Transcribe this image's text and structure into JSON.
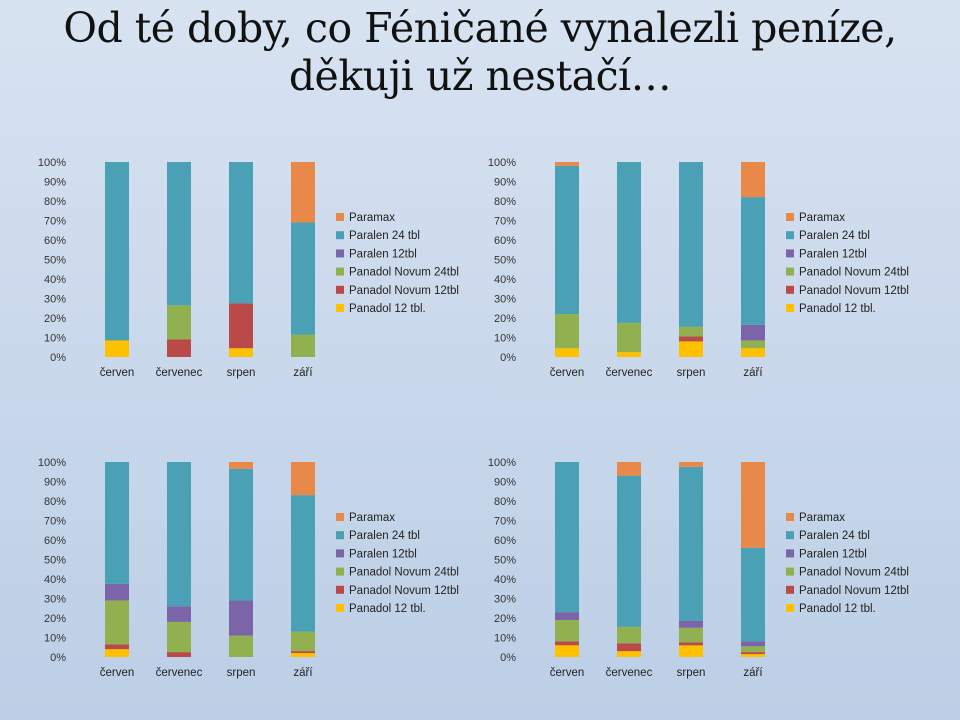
{
  "title": {
    "line1": "Od té doby, co Féničané vynalezli peníze,",
    "line2": "děkuji už nestačí…"
  },
  "colors": {
    "Paramax": "#e8894a",
    "Paralen 24 tbl": "#4aa0b5",
    "Paralen 12tbl": "#7b64a8",
    "Panadol Novum 24tbl": "#91b151",
    "Panadol Novum 12tbl": "#b94a48",
    "Panadol 12 tbl.": "#ffc000"
  },
  "chart_data": [
    {
      "type": "bar",
      "stacked": "percent",
      "categories": [
        "červen",
        "červenec",
        "srpen",
        "září"
      ],
      "ylim": [
        0,
        100
      ],
      "yticks": [
        "0%",
        "10%",
        "20%",
        "30%",
        "40%",
        "50%",
        "60%",
        "70%",
        "80%",
        "90%",
        "100%"
      ],
      "legend": "right",
      "series": [
        {
          "name": "Panadol 12 tbl.",
          "values": [
            8.5,
            0,
            4.5,
            0
          ]
        },
        {
          "name": "Panadol Novum 12tbl",
          "values": [
            0,
            9,
            23,
            0
          ]
        },
        {
          "name": "Panadol Novum 24tbl",
          "values": [
            0,
            17.5,
            0,
            11.5
          ]
        },
        {
          "name": "Paralen 12tbl",
          "values": [
            0,
            0,
            0,
            0
          ]
        },
        {
          "name": "Paralen 24 tbl",
          "values": [
            91.5,
            73.5,
            72.5,
            57.5
          ]
        },
        {
          "name": "Paramax",
          "values": [
            0,
            0,
            0,
            31
          ]
        }
      ]
    },
    {
      "type": "bar",
      "stacked": "percent",
      "categories": [
        "červen",
        "červenec",
        "srpen",
        "září"
      ],
      "ylim": [
        0,
        100
      ],
      "yticks": [
        "0%",
        "10%",
        "20%",
        "30%",
        "40%",
        "50%",
        "60%",
        "70%",
        "80%",
        "90%",
        "100%"
      ],
      "legend": "right",
      "series": [
        {
          "name": "Panadol 12 tbl.",
          "values": [
            4.5,
            2.5,
            8,
            4.5
          ]
        },
        {
          "name": "Panadol Novum 12tbl",
          "values": [
            0,
            0,
            2.5,
            0
          ]
        },
        {
          "name": "Panadol Novum 24tbl",
          "values": [
            17.5,
            15,
            5,
            4
          ]
        },
        {
          "name": "Paralen 12tbl",
          "values": [
            0,
            0,
            0,
            8
          ]
        },
        {
          "name": "Paralen 24 tbl",
          "values": [
            76,
            82.5,
            84.5,
            65.5
          ]
        },
        {
          "name": "Paramax",
          "values": [
            2,
            0,
            0,
            18
          ]
        }
      ]
    },
    {
      "type": "bar",
      "stacked": "percent",
      "categories": [
        "červen",
        "červenec",
        "srpen",
        "září"
      ],
      "ylim": [
        0,
        100
      ],
      "yticks": [
        "0%",
        "10%",
        "20%",
        "30%",
        "40%",
        "50%",
        "60%",
        "70%",
        "80%",
        "90%",
        "100%"
      ],
      "legend": "right",
      "series": [
        {
          "name": "Panadol 12 tbl.",
          "values": [
            4,
            0,
            0,
            2
          ]
        },
        {
          "name": "Panadol Novum 12tbl",
          "values": [
            2.5,
            2.5,
            0,
            1
          ]
        },
        {
          "name": "Panadol Novum 24tbl",
          "values": [
            22.5,
            15.5,
            11,
            10
          ]
        },
        {
          "name": "Paralen 12tbl",
          "values": [
            8.5,
            8,
            18,
            0
          ]
        },
        {
          "name": "Paralen 24 tbl",
          "values": [
            62.5,
            74,
            67.5,
            70
          ]
        },
        {
          "name": "Paramax",
          "values": [
            0,
            0,
            3.5,
            17
          ]
        }
      ]
    },
    {
      "type": "bar",
      "stacked": "percent",
      "categories": [
        "červen",
        "červenec",
        "srpen",
        "září"
      ],
      "ylim": [
        0,
        100
      ],
      "yticks": [
        "0%",
        "10%",
        "20%",
        "30%",
        "40%",
        "50%",
        "60%",
        "70%",
        "80%",
        "90%",
        "100%"
      ],
      "legend": "right",
      "series": [
        {
          "name": "Panadol 12 tbl.",
          "values": [
            6,
            3,
            6,
            1.5
          ]
        },
        {
          "name": "Panadol Novum 12tbl",
          "values": [
            2,
            4,
            1.5,
            1
          ]
        },
        {
          "name": "Panadol Novum 24tbl",
          "values": [
            11,
            8.5,
            7.5,
            3
          ]
        },
        {
          "name": "Paralen 12tbl",
          "values": [
            4,
            0,
            3.5,
            2.5
          ]
        },
        {
          "name": "Paralen 24 tbl",
          "values": [
            77,
            77.5,
            79,
            48
          ]
        },
        {
          "name": "Paramax",
          "values": [
            0,
            7,
            2.5,
            44
          ]
        }
      ]
    }
  ]
}
